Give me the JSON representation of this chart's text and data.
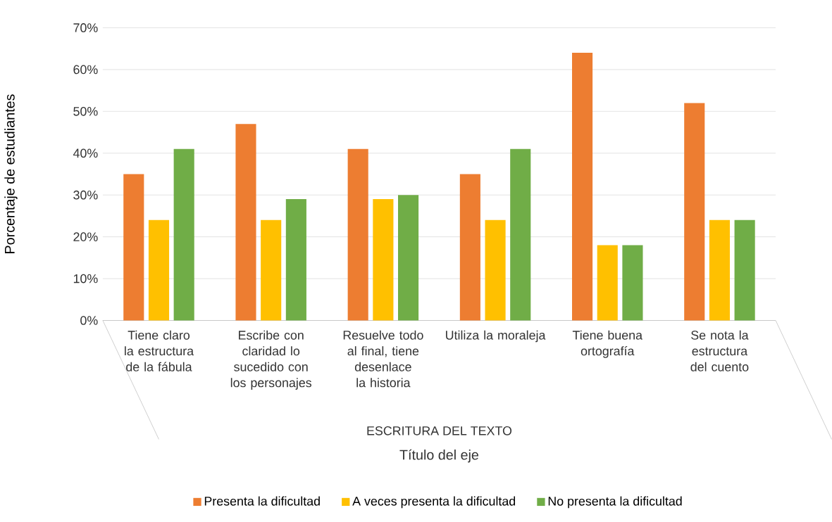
{
  "chart_data": {
    "type": "bar",
    "categories": [
      "Tiene claro la estructura de la fábula",
      "Escribe con claridad lo sucedido con los personajes",
      "Resuelve todo al final, tiene desenlace la historia",
      "Utiliza la moraleja",
      "Tiene buena ortografía",
      "Se nota la estructura del cuento"
    ],
    "series": [
      {
        "name": "Presenta la dificultad",
        "color": "#ed7d31",
        "values": [
          35,
          47,
          41,
          35,
          64,
          52
        ]
      },
      {
        "name": "A veces presenta la dificultad",
        "color": "#ffc000",
        "values": [
          24,
          24,
          29,
          24,
          18,
          24
        ]
      },
      {
        "name": "No presenta la dificultad",
        "color": "#70ad47",
        "values": [
          41,
          29,
          30,
          41,
          18,
          24
        ]
      }
    ],
    "ylabel": "Porcentaje de estudiantes",
    "xlabel": "Título del eje",
    "annotations": [
      "ESCRITURA DEL TEXTO"
    ],
    "ylim": [
      0,
      70
    ],
    "yticks": [
      {
        "value": 0,
        "label": "0%"
      },
      {
        "value": 10,
        "label": "10%"
      },
      {
        "value": 20,
        "label": "20%"
      },
      {
        "value": 30,
        "label": "30%"
      },
      {
        "value": 40,
        "label": "40%"
      },
      {
        "value": 50,
        "label": "50%"
      },
      {
        "value": 60,
        "label": "60%"
      },
      {
        "value": 70,
        "label": "70%"
      }
    ],
    "grid": "y",
    "legend": "bottom"
  }
}
